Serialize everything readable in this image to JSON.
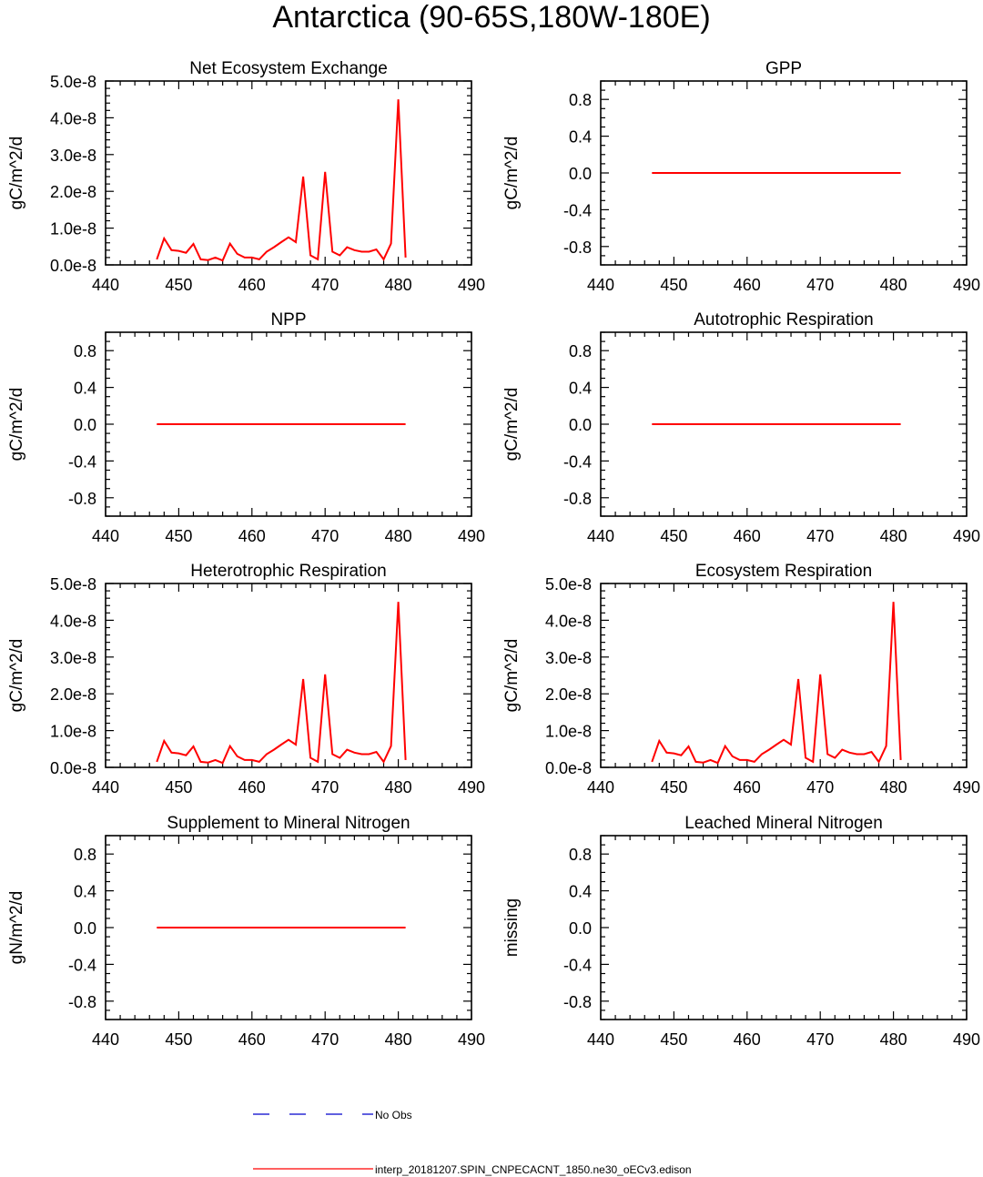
{
  "figure_title": "Antarctica (90-65S,180W-180E)",
  "colors": {
    "series": "#ff0000",
    "obs": "#0000cc",
    "axis": "#000000"
  },
  "legend": {
    "obs_label": "No Obs",
    "model_label": "interp_20181207.SPIN_CNPECACNT_1850.ne30_oECv3.edison"
  },
  "chart_data": [
    {
      "type": "line",
      "title": "Net Ecosystem Exchange",
      "ylabel": "gC/m^2/d",
      "xlim": [
        440,
        490
      ],
      "ylim": [
        0,
        5e-08
      ],
      "xticks": [
        "440",
        "450",
        "460",
        "470",
        "480",
        "490"
      ],
      "yticks": [
        "0.0e-8",
        "1.0e-8",
        "2.0e-8",
        "3.0e-8",
        "4.0e-8",
        "5.0e-8"
      ],
      "x": [
        447,
        448,
        449,
        450,
        451,
        452,
        453,
        454,
        455,
        456,
        457,
        458,
        459,
        460,
        461,
        462,
        463,
        464,
        465,
        466,
        467,
        468,
        469,
        470,
        471,
        472,
        473,
        474,
        475,
        476,
        477,
        478,
        479,
        480,
        481
      ],
      "values": [
        1.5e-09,
        7.2e-09,
        4e-09,
        3.8e-09,
        3.3e-09,
        5.7e-09,
        1.5e-09,
        1.3e-09,
        2e-09,
        1.2e-09,
        5.8e-09,
        3e-09,
        2e-09,
        2e-09,
        1.5e-09,
        3.6e-09,
        4.8e-09,
        6.2e-09,
        7.5e-09,
        6.2e-09,
        2.4e-08,
        2.6e-09,
        1.5e-09,
        2.53e-08,
        3.6e-09,
        2.6e-09,
        4.8e-09,
        4e-09,
        3.6e-09,
        3.6e-09,
        4.2e-09,
        1.5e-09,
        5.8e-09,
        4.5e-08,
        2e-09
      ]
    },
    {
      "type": "line",
      "title": "GPP",
      "ylabel": "gC/m^2/d",
      "xlim": [
        440,
        490
      ],
      "ylim": [
        -1,
        1
      ],
      "xticks": [
        "440",
        "450",
        "460",
        "470",
        "480",
        "490"
      ],
      "yticks": [
        "-0.8",
        "-0.4",
        "0.0",
        "0.4",
        "0.8"
      ],
      "x": [
        447,
        481
      ],
      "values": [
        0,
        0
      ]
    },
    {
      "type": "line",
      "title": "NPP",
      "ylabel": "gC/m^2/d",
      "xlim": [
        440,
        490
      ],
      "ylim": [
        -1,
        1
      ],
      "xticks": [
        "440",
        "450",
        "460",
        "470",
        "480",
        "490"
      ],
      "yticks": [
        "-0.8",
        "-0.4",
        "0.0",
        "0.4",
        "0.8"
      ],
      "x": [
        447,
        481
      ],
      "values": [
        0,
        0
      ]
    },
    {
      "type": "line",
      "title": "Autotrophic Respiration",
      "ylabel": "gC/m^2/d",
      "xlim": [
        440,
        490
      ],
      "ylim": [
        -1,
        1
      ],
      "xticks": [
        "440",
        "450",
        "460",
        "470",
        "480",
        "490"
      ],
      "yticks": [
        "-0.8",
        "-0.4",
        "0.0",
        "0.4",
        "0.8"
      ],
      "x": [
        447,
        481
      ],
      "values": [
        0,
        0
      ]
    },
    {
      "type": "line",
      "title": "Heterotrophic Respiration",
      "ylabel": "gC/m^2/d",
      "xlim": [
        440,
        490
      ],
      "ylim": [
        0,
        5e-08
      ],
      "xticks": [
        "440",
        "450",
        "460",
        "470",
        "480",
        "490"
      ],
      "yticks": [
        "0.0e-8",
        "1.0e-8",
        "2.0e-8",
        "3.0e-8",
        "4.0e-8",
        "5.0e-8"
      ],
      "x": [
        447,
        448,
        449,
        450,
        451,
        452,
        453,
        454,
        455,
        456,
        457,
        458,
        459,
        460,
        461,
        462,
        463,
        464,
        465,
        466,
        467,
        468,
        469,
        470,
        471,
        472,
        473,
        474,
        475,
        476,
        477,
        478,
        479,
        480,
        481
      ],
      "values": [
        1.5e-09,
        7.2e-09,
        4e-09,
        3.8e-09,
        3.3e-09,
        5.7e-09,
        1.5e-09,
        1.3e-09,
        2e-09,
        1.2e-09,
        5.8e-09,
        3e-09,
        2e-09,
        2e-09,
        1.5e-09,
        3.6e-09,
        4.8e-09,
        6.2e-09,
        7.5e-09,
        6.2e-09,
        2.4e-08,
        2.6e-09,
        1.5e-09,
        2.53e-08,
        3.6e-09,
        2.6e-09,
        4.8e-09,
        4e-09,
        3.6e-09,
        3.6e-09,
        4.2e-09,
        1.5e-09,
        5.8e-09,
        4.5e-08,
        2e-09
      ]
    },
    {
      "type": "line",
      "title": "Ecosystem Respiration",
      "ylabel": "gC/m^2/d",
      "xlim": [
        440,
        490
      ],
      "ylim": [
        0,
        5e-08
      ],
      "xticks": [
        "440",
        "450",
        "460",
        "470",
        "480",
        "490"
      ],
      "yticks": [
        "0.0e-8",
        "1.0e-8",
        "2.0e-8",
        "3.0e-8",
        "4.0e-8",
        "5.0e-8"
      ],
      "x": [
        447,
        448,
        449,
        450,
        451,
        452,
        453,
        454,
        455,
        456,
        457,
        458,
        459,
        460,
        461,
        462,
        463,
        464,
        465,
        466,
        467,
        468,
        469,
        470,
        471,
        472,
        473,
        474,
        475,
        476,
        477,
        478,
        479,
        480,
        481
      ],
      "values": [
        1.5e-09,
        7.2e-09,
        4e-09,
        3.8e-09,
        3.3e-09,
        5.7e-09,
        1.5e-09,
        1.3e-09,
        2e-09,
        1.2e-09,
        5.8e-09,
        3e-09,
        2e-09,
        2e-09,
        1.5e-09,
        3.6e-09,
        4.8e-09,
        6.2e-09,
        7.5e-09,
        6.2e-09,
        2.4e-08,
        2.6e-09,
        1.5e-09,
        2.53e-08,
        3.6e-09,
        2.6e-09,
        4.8e-09,
        4e-09,
        3.6e-09,
        3.6e-09,
        4.2e-09,
        1.5e-09,
        5.8e-09,
        4.5e-08,
        2e-09
      ]
    },
    {
      "type": "line",
      "title": "Supplement to Mineral Nitrogen",
      "ylabel": "gN/m^2/d",
      "xlim": [
        440,
        490
      ],
      "ylim": [
        -1,
        1
      ],
      "xticks": [
        "440",
        "450",
        "460",
        "470",
        "480",
        "490"
      ],
      "yticks": [
        "-0.8",
        "-0.4",
        "0.0",
        "0.4",
        "0.8"
      ],
      "x": [
        447,
        481
      ],
      "values": [
        0,
        0
      ]
    },
    {
      "type": "line",
      "title": "Leached Mineral Nitrogen",
      "ylabel": "missing",
      "xlim": [
        440,
        490
      ],
      "ylim": [
        -1,
        1
      ],
      "xticks": [
        "440",
        "450",
        "460",
        "470",
        "480",
        "490"
      ],
      "yticks": [
        "-0.8",
        "-0.4",
        "0.0",
        "0.4",
        "0.8"
      ],
      "x": [],
      "values": []
    }
  ]
}
